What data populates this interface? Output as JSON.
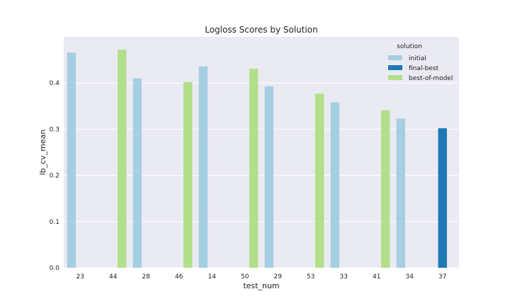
{
  "chart_data": {
    "type": "bar",
    "title": "Logloss Scores by Solution",
    "xlabel": "test_num",
    "ylabel": "lb_cv_mean",
    "categories": [
      "23",
      "44",
      "28",
      "46",
      "14",
      "50",
      "29",
      "53",
      "33",
      "41",
      "34",
      "37"
    ],
    "ylim": [
      0,
      0.5
    ],
    "yticks": [
      "0.0",
      "0.1",
      "0.2",
      "0.3",
      "0.4"
    ],
    "grid": true,
    "legend": {
      "title": "solution",
      "placement": "top-right"
    },
    "series": [
      {
        "name": "initial",
        "color": "#a6cee3",
        "values": [
          0.466,
          null,
          0.41,
          null,
          0.436,
          null,
          0.393,
          null,
          0.358,
          null,
          0.323,
          null
        ]
      },
      {
        "name": "final-best",
        "color": "#1f78b4",
        "values": [
          null,
          null,
          null,
          null,
          null,
          null,
          null,
          null,
          null,
          null,
          null,
          0.302
        ]
      },
      {
        "name": "best-of-model",
        "color": "#b2df8a",
        "values": [
          null,
          0.472,
          null,
          0.402,
          null,
          0.431,
          null,
          0.377,
          null,
          0.341,
          null,
          null
        ]
      }
    ]
  }
}
